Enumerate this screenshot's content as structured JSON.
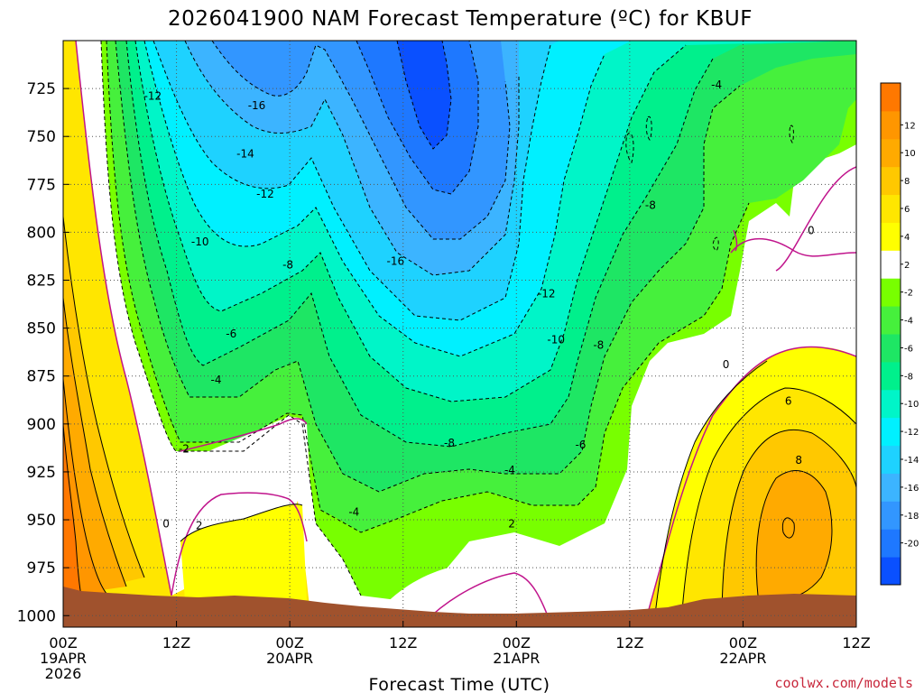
{
  "chart_data": {
    "type": "contour",
    "title": "2026041900 NAM Forecast Temperature (ºC) for KBUF",
    "xlabel": "Forecast Time (UTC)",
    "ylabel": "",
    "credit": "coolwx.com/models",
    "y_axis": {
      "unit": "hPa",
      "range": [
        1006,
        700
      ],
      "ticks": [
        {
          "value": 725,
          "label": "725"
        },
        {
          "value": 750,
          "label": "750"
        },
        {
          "value": 775,
          "label": "775"
        },
        {
          "value": 800,
          "label": "800"
        },
        {
          "value": 825,
          "label": "825"
        },
        {
          "value": 850,
          "label": "850"
        },
        {
          "value": 875,
          "label": "875"
        },
        {
          "value": 900,
          "label": "900"
        },
        {
          "value": 925,
          "label": "925"
        },
        {
          "value": 950,
          "label": "950"
        },
        {
          "value": 975,
          "label": "975"
        },
        {
          "value": 1000,
          "label": "1000"
        }
      ]
    },
    "x_axis": {
      "unit": "forecast hour",
      "range": [
        0,
        84
      ],
      "ticks": [
        {
          "hour": 0,
          "label": "00Z",
          "date": "19APR",
          "year": "2026"
        },
        {
          "hour": 12,
          "label": "12Z"
        },
        {
          "hour": 24,
          "label": "00Z",
          "date": "20APR"
        },
        {
          "hour": 36,
          "label": "12Z"
        },
        {
          "hour": 48,
          "label": "00Z",
          "date": "21APR"
        },
        {
          "hour": 60,
          "label": "12Z"
        },
        {
          "hour": 72,
          "label": "00Z",
          "date": "22APR"
        },
        {
          "hour": 84,
          "label": "12Z"
        }
      ]
    },
    "colorbar": {
      "levels": [
        -22,
        -20,
        -18,
        -16,
        -14,
        -12,
        -10,
        -8,
        -6,
        -4,
        -2,
        2,
        4,
        6,
        8,
        10,
        12,
        14
      ],
      "colors": [
        "#0a50ff",
        "#1e78ff",
        "#3296ff",
        "#3cb4ff",
        "#1ed2ff",
        "#00f0ff",
        "#00f5c8",
        "#00f08c",
        "#1ee664",
        "#46f03c",
        "#78ff00",
        "#ffffff",
        "#ffff00",
        "#ffe600",
        "#ffc800",
        "#ffaa00",
        "#ff9600",
        "#ff7800"
      ],
      "tick_labels": [
        "-20",
        "-18",
        "-16",
        "-14",
        "-12",
        "-10",
        "-8",
        "-6",
        "-4",
        "-2",
        "2",
        "4",
        "6",
        "8",
        "10",
        "12"
      ]
    },
    "contour_labels": [
      {
        "text": "-12",
        "hour": 9.5,
        "p": 729
      },
      {
        "text": "-16",
        "hour": 20.5,
        "p": 734
      },
      {
        "text": "-14",
        "hour": 19.3,
        "p": 759
      },
      {
        "text": "-12",
        "hour": 21.4,
        "p": 780
      },
      {
        "text": "-10",
        "hour": 14.5,
        "p": 805
      },
      {
        "text": "-8",
        "hour": 23.8,
        "p": 817
      },
      {
        "text": "-6",
        "hour": 17.8,
        "p": 853
      },
      {
        "text": "-4",
        "hour": 16.2,
        "p": 877
      },
      {
        "text": "-2",
        "hour": 12.8,
        "p": 913
      },
      {
        "text": "0",
        "hour": 10.9,
        "p": 952
      },
      {
        "text": "2",
        "hour": 14.4,
        "p": 953
      },
      {
        "text": "-4",
        "hour": 30.8,
        "p": 946
      },
      {
        "text": "-16",
        "hour": 35.2,
        "p": 815
      },
      {
        "text": "-8",
        "hour": 40.9,
        "p": 910
      },
      {
        "text": "-4",
        "hour": 47.3,
        "p": 924
      },
      {
        "text": "2",
        "hour": 47.5,
        "p": 952
      },
      {
        "text": "-12",
        "hour": 51.2,
        "p": 832
      },
      {
        "text": "-10",
        "hour": 52.2,
        "p": 856
      },
      {
        "text": "-8",
        "hour": 56.7,
        "p": 859
      },
      {
        "text": "-6",
        "hour": 54.8,
        "p": 911
      },
      {
        "text": "-8",
        "hour": 62.2,
        "p": 786
      },
      {
        "text": "-4",
        "hour": 69.2,
        "p": 723
      },
      {
        "text": "0",
        "hour": 79.2,
        "p": 799
      },
      {
        "text": "0",
        "hour": 70.2,
        "p": 869
      },
      {
        "text": "6",
        "hour": 76.8,
        "p": 888
      },
      {
        "text": "8",
        "hour": 77.9,
        "p": 919
      }
    ]
  }
}
